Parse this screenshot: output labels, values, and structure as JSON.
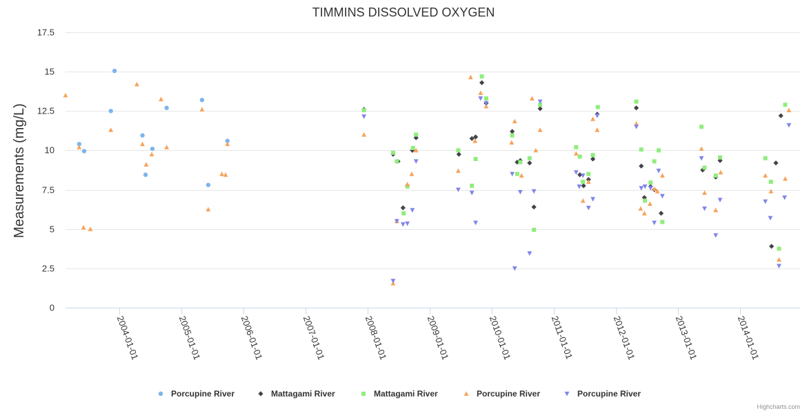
{
  "chart_data": {
    "type": "scatter",
    "title": "TIMMINS DISSOLVED OXYGEN",
    "xlabel": "",
    "ylabel": "Measurements (mg/L)",
    "ylim": [
      0,
      17.5
    ],
    "yticks": [
      0,
      2.5,
      5,
      7.5,
      10,
      12.5,
      15,
      17.5
    ],
    "ytick_labels": [
      "0",
      "2.5",
      "5",
      "7.5",
      "10",
      "12.5",
      "15",
      "17.5"
    ],
    "xlim": [
      2003.13,
      2014.97
    ],
    "xticks": [
      2004,
      2005,
      2006,
      2007,
      2008,
      2009,
      2010,
      2011,
      2012,
      2013,
      2014
    ],
    "xtick_labels": [
      "2004-01-01",
      "2005-01-01",
      "2006-01-01",
      "2007-01-01",
      "2008-01-01",
      "2009-01-01",
      "2010-01-01",
      "2011-01-01",
      "2012-01-01",
      "2013-01-01",
      "2014-01-01"
    ],
    "grid": true,
    "legend_position": "bottom",
    "credits": "Highcharts.com",
    "series": [
      {
        "name": "Porcupine River",
        "marker": "circle",
        "color": "#7cb5ec",
        "points": [
          [
            2003.35,
            10.4
          ],
          [
            2003.43,
            9.95
          ],
          [
            2003.86,
            12.5
          ],
          [
            2003.92,
            15.05
          ],
          [
            2004.37,
            10.95
          ],
          [
            2004.42,
            8.45
          ],
          [
            2004.53,
            10.1
          ],
          [
            2004.76,
            12.7
          ],
          [
            2005.33,
            13.2
          ],
          [
            2005.43,
            7.8
          ],
          [
            2005.74,
            10.6
          ]
        ]
      },
      {
        "name": "Mattagami River",
        "marker": "diamond",
        "color": "#434348",
        "points": [
          [
            2007.94,
            12.6
          ],
          [
            2008.41,
            9.75
          ],
          [
            2008.49,
            9.3
          ],
          [
            2008.57,
            6.35
          ],
          [
            2008.64,
            7.75
          ],
          [
            2008.72,
            10.0
          ],
          [
            2008.78,
            10.8
          ],
          [
            2009.47,
            9.75
          ],
          [
            2009.68,
            10.75
          ],
          [
            2009.74,
            10.85
          ],
          [
            2009.84,
            14.3
          ],
          [
            2009.91,
            13.0
          ],
          [
            2010.33,
            11.2
          ],
          [
            2010.41,
            9.25
          ],
          [
            2010.46,
            9.35
          ],
          [
            2010.61,
            9.2
          ],
          [
            2010.68,
            6.4
          ],
          [
            2010.78,
            12.65
          ],
          [
            2011.42,
            8.45
          ],
          [
            2011.48,
            7.75
          ],
          [
            2011.56,
            8.15
          ],
          [
            2011.63,
            9.45
          ],
          [
            2011.7,
            12.3
          ],
          [
            2012.33,
            12.7
          ],
          [
            2012.41,
            9.0
          ],
          [
            2012.46,
            7.0
          ],
          [
            2012.56,
            7.7
          ],
          [
            2012.62,
            7.5
          ],
          [
            2012.73,
            6.0
          ],
          [
            2013.4,
            8.75
          ],
          [
            2013.61,
            8.3
          ],
          [
            2013.68,
            9.35
          ],
          [
            2014.51,
            3.9
          ],
          [
            2014.58,
            9.2
          ],
          [
            2014.66,
            12.2
          ]
        ]
      },
      {
        "name": "Mattagami River",
        "marker": "square",
        "color": "#90ed7d",
        "points": [
          [
            2007.94,
            12.55
          ],
          [
            2008.41,
            9.85
          ],
          [
            2008.47,
            9.3
          ],
          [
            2008.58,
            6.0
          ],
          [
            2008.64,
            7.7
          ],
          [
            2008.73,
            10.15
          ],
          [
            2008.78,
            11.0
          ],
          [
            2009.46,
            10.0
          ],
          [
            2009.68,
            7.75
          ],
          [
            2009.74,
            9.45
          ],
          [
            2009.84,
            14.7
          ],
          [
            2009.91,
            13.3
          ],
          [
            2010.33,
            10.95
          ],
          [
            2010.41,
            8.5
          ],
          [
            2010.46,
            9.25
          ],
          [
            2010.61,
            9.5
          ],
          [
            2010.68,
            4.95
          ],
          [
            2010.78,
            12.9
          ],
          [
            2011.36,
            10.2
          ],
          [
            2011.42,
            9.6
          ],
          [
            2011.47,
            8.0
          ],
          [
            2011.56,
            8.5
          ],
          [
            2011.63,
            9.7
          ],
          [
            2011.71,
            12.75
          ],
          [
            2012.33,
            13.1
          ],
          [
            2012.41,
            10.05
          ],
          [
            2012.47,
            6.8
          ],
          [
            2012.56,
            7.95
          ],
          [
            2012.62,
            9.3
          ],
          [
            2012.69,
            10.0
          ],
          [
            2012.75,
            5.45
          ],
          [
            2013.38,
            11.5
          ],
          [
            2013.43,
            8.9
          ],
          [
            2013.61,
            8.4
          ],
          [
            2013.68,
            9.55
          ],
          [
            2014.41,
            9.5
          ],
          [
            2014.5,
            8.0
          ],
          [
            2014.63,
            3.75
          ],
          [
            2014.73,
            12.9
          ]
        ]
      },
      {
        "name": "Porcupine River",
        "marker": "triangle",
        "color": "#f7a35c",
        "points": [
          [
            2003.13,
            13.5
          ],
          [
            2003.35,
            10.2
          ],
          [
            2003.42,
            5.1
          ],
          [
            2003.53,
            5.0
          ],
          [
            2003.86,
            11.3
          ],
          [
            2004.28,
            14.2
          ],
          [
            2004.37,
            10.4
          ],
          [
            2004.43,
            9.1
          ],
          [
            2004.52,
            9.75
          ],
          [
            2004.67,
            13.25
          ],
          [
            2004.76,
            10.2
          ],
          [
            2005.33,
            12.6
          ],
          [
            2005.43,
            6.25
          ],
          [
            2005.65,
            8.5
          ],
          [
            2005.71,
            8.45
          ],
          [
            2005.74,
            10.4
          ],
          [
            2007.94,
            11.0
          ],
          [
            2008.41,
            1.55
          ],
          [
            2008.47,
            5.5
          ],
          [
            2008.64,
            7.85
          ],
          [
            2008.71,
            8.5
          ],
          [
            2008.78,
            10.0
          ],
          [
            2009.46,
            8.7
          ],
          [
            2009.66,
            14.65
          ],
          [
            2009.73,
            10.6
          ],
          [
            2009.82,
            13.65
          ],
          [
            2009.91,
            12.8
          ],
          [
            2010.32,
            10.5
          ],
          [
            2010.37,
            11.85
          ],
          [
            2010.48,
            8.4
          ],
          [
            2010.65,
            13.3
          ],
          [
            2010.71,
            10.0
          ],
          [
            2010.78,
            11.3
          ],
          [
            2011.36,
            9.8
          ],
          [
            2011.47,
            6.8
          ],
          [
            2011.56,
            8.0
          ],
          [
            2011.63,
            12.0
          ],
          [
            2011.7,
            11.3
          ],
          [
            2012.33,
            11.7
          ],
          [
            2012.4,
            6.3
          ],
          [
            2012.46,
            6.0
          ],
          [
            2012.55,
            6.6
          ],
          [
            2012.62,
            7.55
          ],
          [
            2012.67,
            7.4
          ],
          [
            2012.75,
            8.4
          ],
          [
            2013.38,
            10.1
          ],
          [
            2013.43,
            7.3
          ],
          [
            2013.61,
            6.2
          ],
          [
            2013.69,
            8.6
          ],
          [
            2014.41,
            8.4
          ],
          [
            2014.5,
            7.4
          ],
          [
            2014.63,
            3.05
          ],
          [
            2014.73,
            8.2
          ],
          [
            2014.79,
            12.55
          ]
        ]
      },
      {
        "name": "Porcupine River",
        "marker": "triangle-down",
        "color": "#8085e9",
        "points": [
          [
            2007.94,
            12.15
          ],
          [
            2008.41,
            1.7
          ],
          [
            2008.47,
            5.5
          ],
          [
            2008.57,
            5.3
          ],
          [
            2008.64,
            5.35
          ],
          [
            2008.72,
            6.2
          ],
          [
            2008.78,
            9.3
          ],
          [
            2009.46,
            7.5
          ],
          [
            2009.68,
            7.3
          ],
          [
            2009.74,
            5.4
          ],
          [
            2009.82,
            13.3
          ],
          [
            2009.91,
            13.0
          ],
          [
            2010.33,
            8.5
          ],
          [
            2010.37,
            2.5
          ],
          [
            2010.46,
            7.35
          ],
          [
            2010.61,
            3.45
          ],
          [
            2010.68,
            7.4
          ],
          [
            2010.78,
            13.1
          ],
          [
            2011.36,
            8.6
          ],
          [
            2011.41,
            7.7
          ],
          [
            2011.47,
            8.4
          ],
          [
            2011.56,
            6.35
          ],
          [
            2011.63,
            6.9
          ],
          [
            2011.7,
            12.2
          ],
          [
            2012.33,
            11.5
          ],
          [
            2012.41,
            7.6
          ],
          [
            2012.47,
            7.7
          ],
          [
            2012.56,
            7.6
          ],
          [
            2012.62,
            5.4
          ],
          [
            2012.69,
            8.7
          ],
          [
            2012.75,
            7.1
          ],
          [
            2013.38,
            9.5
          ],
          [
            2013.43,
            6.3
          ],
          [
            2013.61,
            4.6
          ],
          [
            2013.68,
            6.85
          ],
          [
            2014.41,
            6.75
          ],
          [
            2014.49,
            5.7
          ],
          [
            2014.63,
            2.65
          ],
          [
            2014.72,
            7.0
          ],
          [
            2014.79,
            11.6
          ]
        ]
      }
    ]
  }
}
